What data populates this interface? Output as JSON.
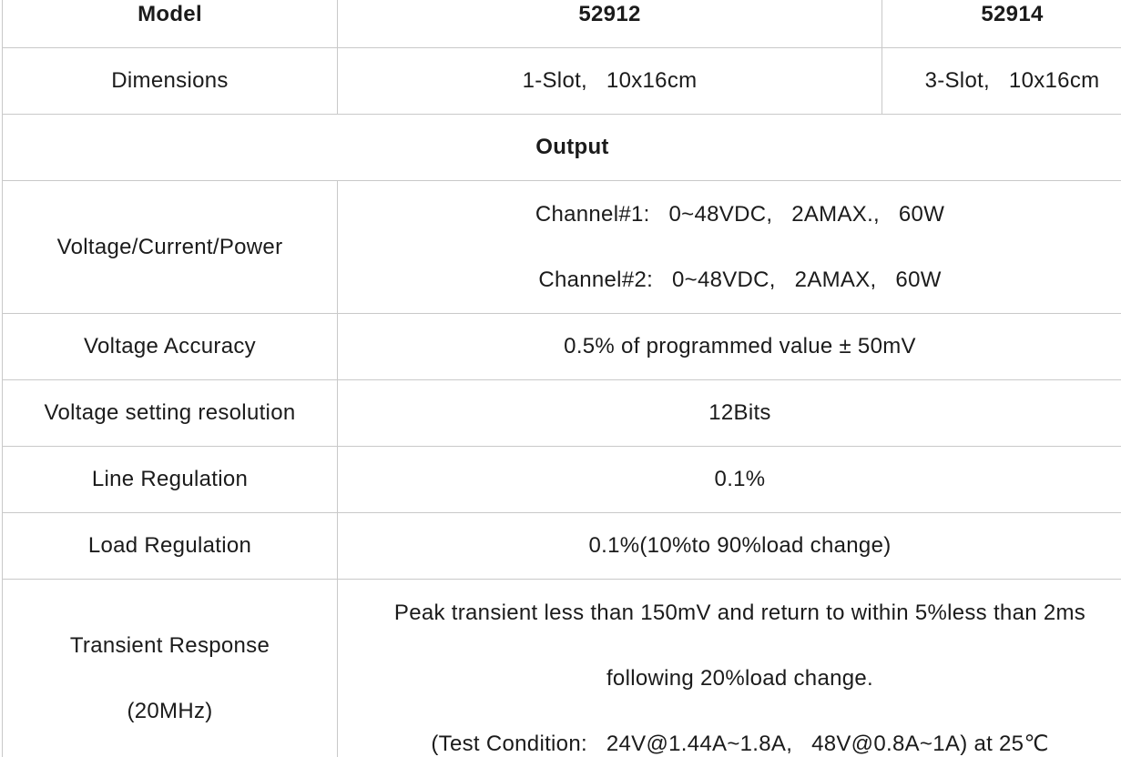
{
  "page": {
    "background": "#ffffff",
    "border_color": "#c9c9c9",
    "text_color": "#1b1b1b"
  },
  "table": {
    "header": {
      "model": "Model",
      "m52912": "52912",
      "m52914": "52914"
    },
    "dimensions": {
      "label": "Dimensions",
      "v52912": "1-Slot,   10x16cm",
      "v52914": "3-Slot,   10x16cm"
    },
    "section": {
      "output": "Output"
    },
    "vcp": {
      "label": "Voltage/Current/Power",
      "line1": "Channel#1:   0~48VDC,   2AMAX.,   60W",
      "line2": "Channel#2:   0~48VDC,   2AMAX,   60W"
    },
    "voltage_accuracy": {
      "label": "Voltage Accuracy",
      "value": "0.5% of programmed value ± 50mV"
    },
    "voltage_resolution": {
      "label": "Voltage setting resolution",
      "value": "12Bits"
    },
    "line_regulation": {
      "label": "Line Regulation",
      "value": "0.1%"
    },
    "load_regulation": {
      "label": "Load Regulation",
      "value": "0.1%(10%to 90%load change)"
    },
    "transient": {
      "label_line1": "Transient Response",
      "label_line2": "(20MHz)",
      "value_line1": "Peak transient less than 150mV and return to within 5%less than 2ms",
      "value_line2": "following 20%load change.",
      "value_line3": "(Test Condition:   24V@1.44A~1.8A,   48V@0.8A~1A) at 25℃"
    }
  }
}
